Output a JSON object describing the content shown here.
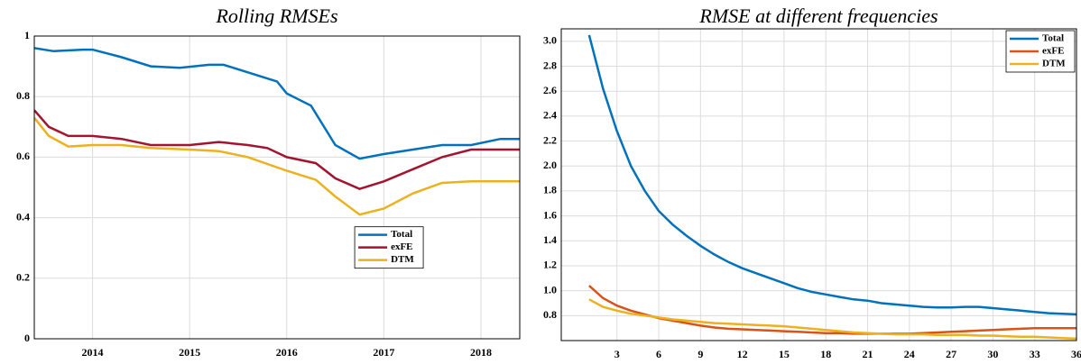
{
  "chart_data": [
    {
      "type": "line",
      "title": "Rolling RMSEs",
      "xlim": [
        2013.4,
        2018.4
      ],
      "xticks": [
        2014,
        2015,
        2016,
        2017,
        2018
      ],
      "ylim": [
        0,
        1
      ],
      "yticks": [
        0,
        0.2,
        0.4,
        0.6,
        0.8,
        1
      ],
      "grid": true,
      "legend": "center",
      "series": [
        {
          "name": "Total",
          "color": "#0072bd",
          "x": [
            2013.4,
            2013.6,
            2013.9,
            2014.0,
            2014.3,
            2014.6,
            2014.9,
            2015.2,
            2015.35,
            2015.6,
            2015.9,
            2016.0,
            2016.25,
            2016.5,
            2016.75,
            2017.0,
            2017.3,
            2017.6,
            2017.9,
            2018.2,
            2018.4
          ],
          "values": [
            0.96,
            0.95,
            0.955,
            0.955,
            0.93,
            0.9,
            0.895,
            0.905,
            0.905,
            0.88,
            0.85,
            0.81,
            0.77,
            0.64,
            0.595,
            0.61,
            0.625,
            0.64,
            0.64,
            0.66,
            0.66
          ]
        },
        {
          "name": "exFE",
          "color": "#a2142f",
          "x": [
            2013.4,
            2013.55,
            2013.75,
            2014.0,
            2014.3,
            2014.6,
            2015.0,
            2015.3,
            2015.6,
            2015.8,
            2016.0,
            2016.3,
            2016.5,
            2016.75,
            2017.0,
            2017.3,
            2017.6,
            2017.9,
            2018.4
          ],
          "values": [
            0.755,
            0.7,
            0.67,
            0.67,
            0.66,
            0.64,
            0.64,
            0.65,
            0.64,
            0.63,
            0.6,
            0.58,
            0.53,
            0.495,
            0.52,
            0.56,
            0.6,
            0.625,
            0.625
          ]
        },
        {
          "name": "DTM",
          "color": "#edb120",
          "x": [
            2013.4,
            2013.55,
            2013.75,
            2014.0,
            2014.3,
            2014.6,
            2015.0,
            2015.3,
            2015.6,
            2016.0,
            2016.3,
            2016.5,
            2016.75,
            2017.0,
            2017.3,
            2017.6,
            2017.9,
            2018.4
          ],
          "values": [
            0.73,
            0.67,
            0.635,
            0.64,
            0.64,
            0.63,
            0.625,
            0.62,
            0.6,
            0.555,
            0.525,
            0.47,
            0.41,
            0.43,
            0.48,
            0.515,
            0.52,
            0.52
          ]
        }
      ]
    },
    {
      "type": "line",
      "title": "RMSE at different frequencies",
      "xlim": [
        -1,
        36
      ],
      "xticks": [
        3,
        6,
        9,
        12,
        15,
        18,
        21,
        24,
        27,
        30,
        33,
        36
      ],
      "ylim": [
        0.6,
        3.1
      ],
      "yticks": [
        0.8,
        {
          "value": 1,
          "label": "1.0"
        },
        1.2,
        1.4,
        1.6,
        1.8,
        {
          "value": 2,
          "label": "2.0"
        },
        2.2,
        2.4,
        2.6,
        2.8,
        {
          "value": 3,
          "label": "3.0"
        }
      ],
      "grid": true,
      "legend": "upper right",
      "series": [
        {
          "name": "Total",
          "color": "#0072bd",
          "x": [
            1,
            2,
            3,
            4,
            5,
            6,
            7,
            8,
            9,
            10,
            11,
            12,
            13,
            14,
            15,
            16,
            17,
            18,
            19,
            20,
            21,
            22,
            23,
            24,
            25,
            26,
            27,
            28,
            29,
            30,
            31,
            32,
            33,
            34,
            35,
            36
          ],
          "values": [
            3.05,
            2.62,
            2.28,
            2.0,
            1.8,
            1.64,
            1.53,
            1.44,
            1.36,
            1.29,
            1.23,
            1.18,
            1.14,
            1.1,
            1.06,
            1.02,
            0.99,
            0.97,
            0.95,
            0.93,
            0.92,
            0.9,
            0.89,
            0.88,
            0.87,
            0.865,
            0.865,
            0.87,
            0.87,
            0.86,
            0.85,
            0.84,
            0.83,
            0.82,
            0.815,
            0.81
          ]
        },
        {
          "name": "exFE",
          "color": "#d95319",
          "x": [
            1,
            2,
            3,
            4,
            5,
            6,
            7,
            8,
            9,
            10,
            11,
            12,
            13,
            14,
            15,
            16,
            17,
            18,
            19,
            20,
            21,
            22,
            23,
            24,
            25,
            26,
            27,
            28,
            29,
            30,
            31,
            32,
            33,
            34,
            35,
            36
          ],
          "values": [
            1.04,
            0.94,
            0.88,
            0.84,
            0.81,
            0.78,
            0.76,
            0.74,
            0.72,
            0.705,
            0.695,
            0.69,
            0.685,
            0.68,
            0.675,
            0.67,
            0.665,
            0.66,
            0.66,
            0.655,
            0.655,
            0.655,
            0.655,
            0.655,
            0.66,
            0.665,
            0.67,
            0.675,
            0.68,
            0.685,
            0.69,
            0.695,
            0.7,
            0.7,
            0.7,
            0.7
          ]
        },
        {
          "name": "DTM",
          "color": "#edb120",
          "x": [
            1,
            2,
            3,
            4,
            5,
            6,
            7,
            8,
            9,
            10,
            11,
            12,
            13,
            14,
            15,
            16,
            17,
            18,
            19,
            20,
            21,
            22,
            23,
            24,
            25,
            26,
            27,
            28,
            29,
            30,
            31,
            32,
            33,
            34,
            35,
            36
          ],
          "values": [
            0.93,
            0.87,
            0.84,
            0.815,
            0.8,
            0.785,
            0.77,
            0.76,
            0.75,
            0.74,
            0.735,
            0.73,
            0.725,
            0.72,
            0.715,
            0.705,
            0.695,
            0.685,
            0.675,
            0.665,
            0.66,
            0.655,
            0.65,
            0.65,
            0.65,
            0.645,
            0.645,
            0.645,
            0.64,
            0.64,
            0.635,
            0.63,
            0.63,
            0.625,
            0.62,
            0.615
          ]
        }
      ]
    }
  ]
}
